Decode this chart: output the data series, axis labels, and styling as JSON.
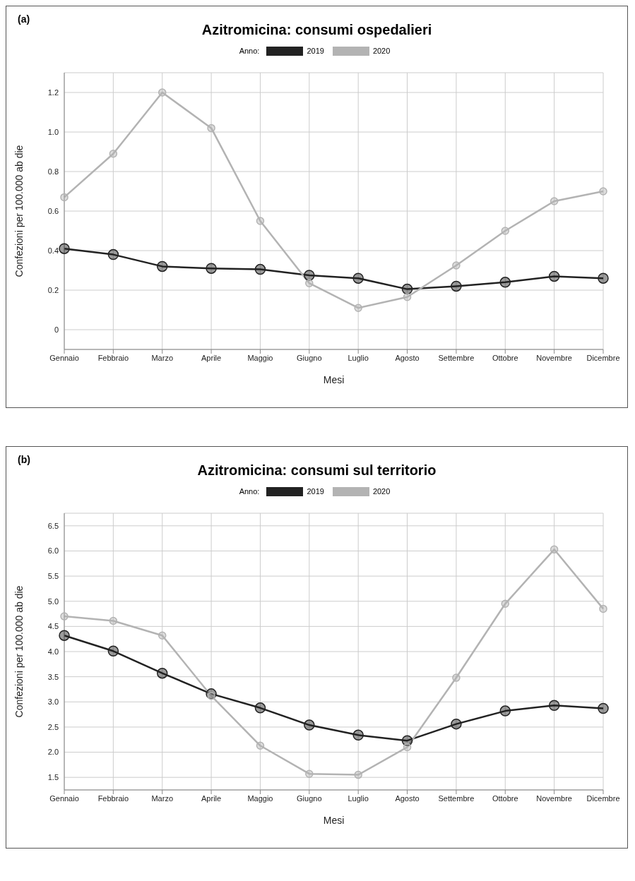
{
  "chart_data": [
    {
      "type": "line",
      "title": "Azitromicina: consumi ospedalieri",
      "xlabel": "Mesi",
      "ylabel": "Confezioni per 100.000 ab die",
      "legend_title": "Anno:",
      "annotations": [
        "(a)"
      ],
      "categories": [
        "Gennaio",
        "Febbraio",
        "Marzo",
        "Aprile",
        "Maggio",
        "Giugno",
        "Luglio",
        "Agosto",
        "Settembre",
        "Ottobre",
        "Novembre",
        "Dicembre"
      ],
      "series": [
        {
          "name": "2019",
          "color": "#222222",
          "values": [
            0.41,
            0.38,
            0.32,
            0.31,
            0.305,
            0.275,
            0.26,
            0.205,
            0.22,
            0.24,
            0.27,
            0.26
          ]
        },
        {
          "name": "2020",
          "color": "#b3b3b3",
          "values": [
            0.67,
            0.89,
            1.2,
            1.02,
            0.55,
            0.235,
            0.11,
            0.165,
            0.325,
            0.5,
            0.65,
            0.7
          ]
        }
      ],
      "ylim": [
        -0.1,
        1.3
      ],
      "yticks": [
        0,
        0.2,
        0.4,
        0.6,
        0.8,
        {
          "value": 1.0,
          "label": "1.0"
        },
        1.2
      ],
      "grid": true,
      "legend": "top",
      "marker": "circle",
      "line_style": "solid"
    },
    {
      "type": "line",
      "title": "Azitromicina: consumi sul territorio",
      "xlabel": "Mesi",
      "ylabel": "Confezioni per 100.000 ab die",
      "legend_title": "Anno:",
      "annotations": [
        "(b)"
      ],
      "categories": [
        "Gennaio",
        "Febbraio",
        "Marzo",
        "Aprile",
        "Maggio",
        "Giugno",
        "Luglio",
        "Agosto",
        "Settembre",
        "Ottobre",
        "Novembre",
        "Dicembre"
      ],
      "series": [
        {
          "name": "2019",
          "color": "#222222",
          "values": [
            4.32,
            4.01,
            3.57,
            3.16,
            2.88,
            2.54,
            2.34,
            2.23,
            2.56,
            2.82,
            2.93,
            2.87
          ]
        },
        {
          "name": "2020",
          "color": "#b3b3b3",
          "values": [
            4.7,
            4.61,
            4.32,
            3.12,
            2.13,
            1.57,
            1.55,
            2.1,
            3.48,
            4.95,
            6.03,
            4.85
          ]
        }
      ],
      "ylim": [
        1.25,
        6.75
      ],
      "yticks": [
        1.5,
        {
          "value": 2.0,
          "label": "2.0"
        },
        2.5,
        {
          "value": 3.0,
          "label": "3.0"
        },
        3.5,
        {
          "value": 4.0,
          "label": "4.0"
        },
        4.5,
        {
          "value": 5.0,
          "label": "5.0"
        },
        5.5,
        {
          "value": 6.0,
          "label": "6.0"
        },
        6.5
      ],
      "grid": true,
      "legend": "top",
      "marker": "circle",
      "line_style": "solid"
    }
  ]
}
